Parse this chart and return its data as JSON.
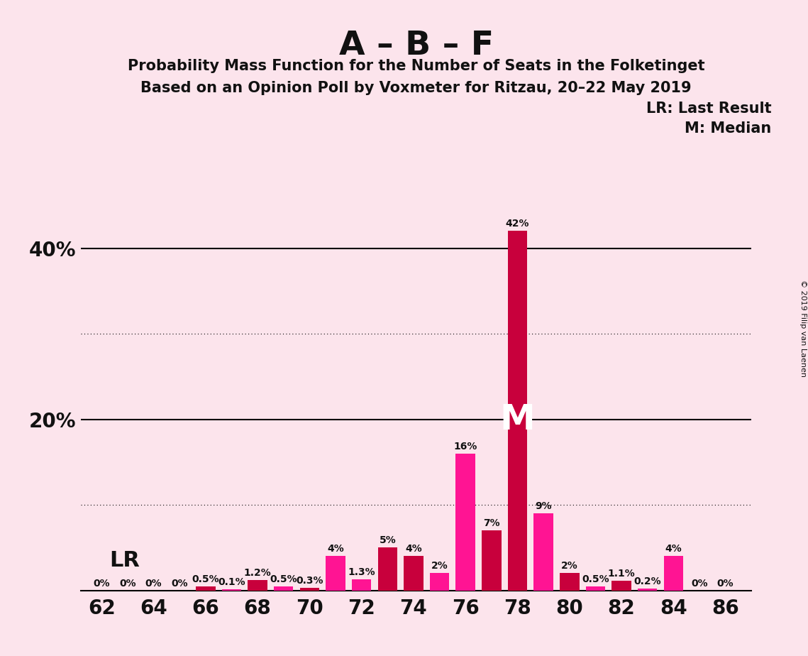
{
  "title_main": "A – B – F",
  "title_sub1": "Probability Mass Function for the Number of Seats in the Folketinget",
  "title_sub2": "Based on an Opinion Poll by Voxmeter for Ritzau, 20–22 May 2019",
  "seats": [
    62,
    63,
    64,
    65,
    66,
    67,
    68,
    69,
    70,
    71,
    72,
    73,
    74,
    75,
    76,
    77,
    78,
    79,
    80,
    81,
    82,
    83,
    84,
    85,
    86
  ],
  "values": [
    0.0,
    0.0,
    0.0,
    0.0,
    0.5,
    0.1,
    1.2,
    0.5,
    0.3,
    4.0,
    1.3,
    5.0,
    4.0,
    2.0,
    16.0,
    7.0,
    42.0,
    9.0,
    2.0,
    0.5,
    1.1,
    0.2,
    4.0,
    0.0,
    0.0
  ],
  "bar_colors": [
    "#e8005a",
    "#ff69b4",
    "#e8005a",
    "#ff69b4",
    "#e8005a",
    "#ff69b4",
    "#e8005a",
    "#ff69b4",
    "#e8005a",
    "#ff69b4",
    "#ff69b4",
    "#e8005a",
    "#e8005a",
    "#ff69b4",
    "#ff69b4",
    "#e8005a",
    "#e8005a",
    "#ff69b4",
    "#e8005a",
    "#ff69b4",
    "#e8005a",
    "#ff69b4",
    "#ff69b4",
    "#e8005a",
    "#e8005a"
  ],
  "label_values": [
    "0%",
    "0%",
    "0%",
    "0%",
    "0.5%",
    "0.1%",
    "1.2%",
    "0.5%",
    "0.3%",
    "4%",
    "1.3%",
    "5%",
    "4%",
    "2%",
    "16%",
    "7%",
    "42%",
    "9%",
    "2%",
    "0.5%",
    "1.1%",
    "0.2%",
    "4%",
    "0%",
    "0%"
  ],
  "median_seat": 78,
  "background_color": "#fce4ec",
  "dotted_lines": [
    10.0,
    30.0
  ],
  "solid_lines": [
    20.0,
    40.0
  ],
  "copyright_text": "© 2019 Filip van Laenen",
  "lr_text": "LR: Last Result",
  "m_text": "M: Median",
  "lr_label": "LR",
  "crimson": "#c8003c",
  "hotpink": "#ff1493",
  "ylim_max": 46,
  "bar_width": 0.75
}
